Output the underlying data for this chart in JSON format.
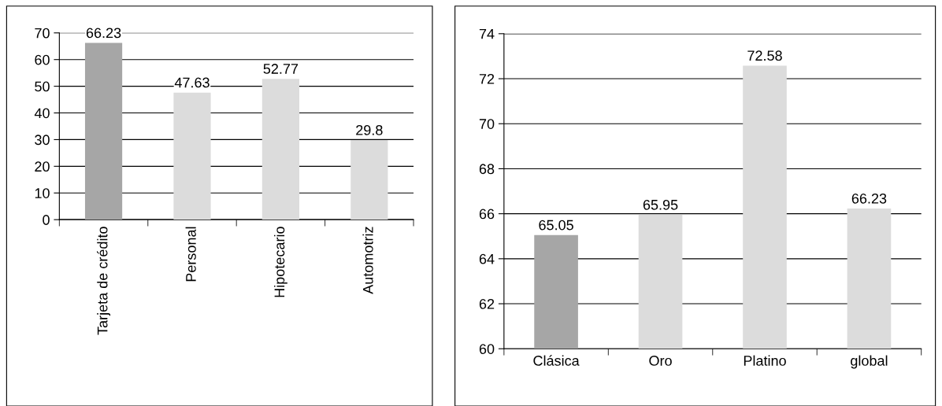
{
  "chart_data": [
    {
      "type": "bar",
      "categories": [
        "Tarjeta de crédito",
        "Personal",
        "Hipotecario",
        "Automotriz"
      ],
      "values": [
        66.23,
        47.63,
        52.77,
        29.8
      ],
      "colors": [
        "#a6a6a6",
        "#dcdcdc",
        "#dcdcdc",
        "#dcdcdc"
      ],
      "ylim": [
        0,
        70
      ],
      "yticks": [
        0,
        10,
        20,
        30,
        40,
        50,
        60,
        70
      ],
      "grid": "y",
      "data_labels": true
    },
    {
      "type": "bar",
      "categories": [
        "Clásica",
        "Oro",
        "Platino",
        "global"
      ],
      "values": [
        65.05,
        65.95,
        72.58,
        66.23
      ],
      "colors": [
        "#a6a6a6",
        "#dcdcdc",
        "#dcdcdc",
        "#dcdcdc"
      ],
      "ylim": [
        60,
        74
      ],
      "yticks": [
        60,
        62,
        64,
        66,
        68,
        70,
        72,
        74
      ],
      "grid": "y",
      "data_labels": true
    }
  ]
}
